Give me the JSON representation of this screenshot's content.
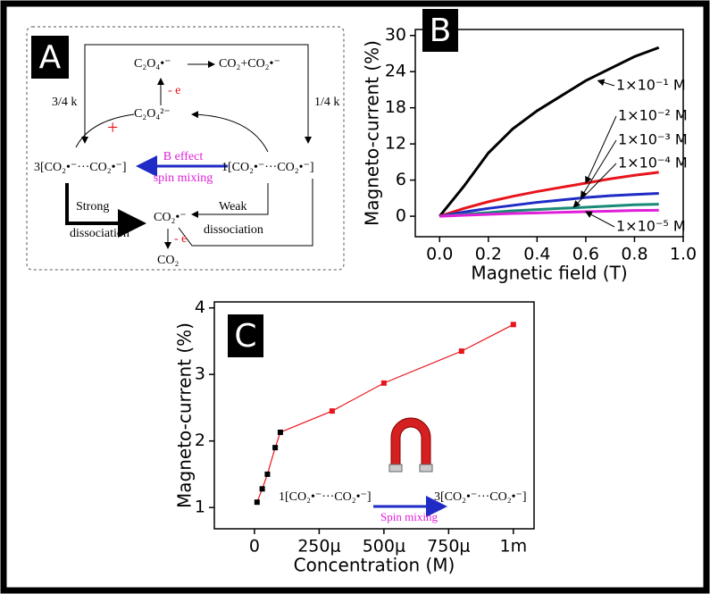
{
  "chart_data": [
    {
      "type": "line",
      "panel_label": "B",
      "xlabel": "Magnetic field (T)",
      "ylabel": "Magneto-current (%)",
      "xlim": [
        -0.1,
        1.0
      ],
      "ylim": [
        -3.4,
        31
      ],
      "xticks": [
        {
          "value": 0,
          "label": "0.0"
        },
        0.2,
        0.4,
        0.6,
        0.8,
        {
          "value": 1,
          "label": "1.0"
        }
      ],
      "yticks": [
        0,
        6,
        12,
        18,
        24,
        30
      ],
      "x": [
        0,
        0.1,
        0.2,
        0.3,
        0.4,
        0.5,
        0.6,
        0.7,
        0.8,
        0.9
      ],
      "series": [
        {
          "name": "1×10⁻¹ M",
          "color": "#000000",
          "values": [
            0,
            5,
            10.5,
            14.5,
            17.5,
            20,
            22.5,
            24.5,
            26.5,
            28
          ]
        },
        {
          "name": "1×10⁻² M",
          "color": "#e8141c",
          "values": [
            0,
            1.3,
            2.4,
            3.3,
            4.1,
            4.8,
            5.5,
            6.2,
            6.8,
            7.3
          ]
        },
        {
          "name": "1×10⁻³ M",
          "color": "#1f2bc4",
          "values": [
            0,
            0.7,
            1.3,
            1.8,
            2.3,
            2.7,
            3.1,
            3.4,
            3.6,
            3.8
          ]
        },
        {
          "name": "1×10⁻⁴ M",
          "color": "#1a8a78",
          "values": [
            0,
            0.3,
            0.6,
            0.9,
            1.1,
            1.3,
            1.5,
            1.7,
            1.9,
            2.0
          ]
        },
        {
          "name": "1×10⁻⁵ M",
          "color": "#e020d8",
          "values": [
            0,
            0.15,
            0.3,
            0.45,
            0.55,
            0.65,
            0.75,
            0.85,
            0.95,
            1.0
          ]
        }
      ]
    },
    {
      "type": "line",
      "panel_label": "C",
      "xlabel": "Concentration (M)",
      "ylabel": "Magneto-current (%)",
      "xlim": [
        -0.000155,
        0.00108
      ],
      "ylim": [
        0.68,
        4.09
      ],
      "xticks": [
        0,
        {
          "value": 0.00025,
          "label": "250μ"
        },
        {
          "value": 0.0005,
          "label": "500μ"
        },
        {
          "value": 0.00075,
          "label": "750μ"
        },
        {
          "value": 0.001,
          "label": "1m"
        }
      ],
      "yticks": [
        1,
        2,
        3,
        4
      ],
      "x": [
        1e-05,
        3e-05,
        5e-05,
        8e-05,
        0.0001,
        0.0003,
        0.0005,
        0.0008,
        0.001
      ],
      "series": [
        {
          "color": "#e8141c",
          "values": [
            1.08,
            1.28,
            1.5,
            1.9,
            2.13,
            2.45,
            2.87,
            3.35,
            3.75
          ]
        }
      ],
      "point_colors": [
        "#000000",
        "#000000",
        "#000000",
        "#000000",
        "#000000",
        "#e8141c",
        "#e8141c",
        "#e8141c",
        "#e8141c"
      ],
      "inset": {
        "left": "1[CO₂•⁻···CO₂•⁻]",
        "arrow": "Spin mixing",
        "right": "3[CO₂•⁻···CO₂•⁻]"
      }
    }
  ],
  "diagram": {
    "panel_label": "A",
    "top_radical": "C₂O₄•⁻",
    "products": "CO₂+CO₂•⁻",
    "minus_e_top": "- e",
    "oxalate": "C₂O₄²⁻",
    "k_left": "3/4 k",
    "k_right": "1/4 k",
    "triplet": "3[CO₂•⁻···CO₂•⁻]",
    "singlet": "1[CO₂•⁻···CO₂•⁻]",
    "b_effect": "B effect",
    "spin_mixing": "spin mixing",
    "strong": "Strong",
    "strong2": "dissociation",
    "weak": "Weak",
    "weak2": "dissociation",
    "radical": "CO₂•⁻",
    "minus_e_bottom": "- e",
    "co2": "CO₂"
  }
}
